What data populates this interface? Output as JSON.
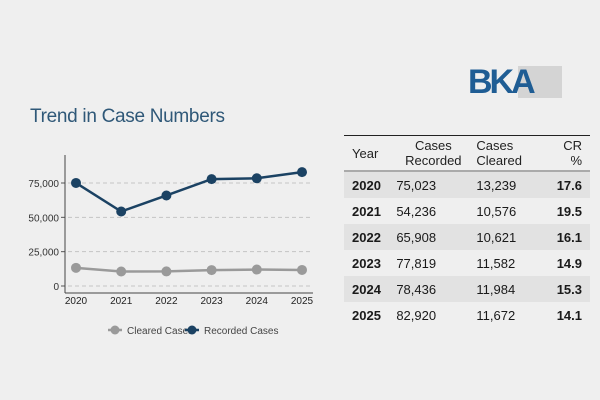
{
  "logo_text": "BKA",
  "colors": {
    "recorded": "#1b4263",
    "cleared": "#9a9a9a",
    "title": "#2f5878",
    "logo": "#1f5d94"
  },
  "chart_data": {
    "type": "line",
    "title": "Trend in Case Numbers",
    "x": [
      "2020",
      "2021",
      "2022",
      "2023",
      "2024",
      "2025"
    ],
    "yticks": [
      "0",
      "25,000",
      "50,000",
      "75,000"
    ],
    "ytick_values": [
      0,
      25000,
      50000,
      75000
    ],
    "ylim": [
      0,
      95000
    ],
    "grid": "horizontal dashed",
    "legend_position": "bottom",
    "series": [
      {
        "name": "Cleared Cases",
        "color": "#9a9a9a",
        "values": [
          13239,
          10576,
          10621,
          11582,
          11984,
          11672
        ]
      },
      {
        "name": "Recorded Cases",
        "color": "#1b4263",
        "values": [
          75023,
          54236,
          65908,
          77819,
          78436,
          82920
        ]
      }
    ]
  },
  "table": {
    "headers": [
      "Year",
      "Cases Recorded",
      "Cases Cleared",
      "CR %"
    ],
    "rows": [
      [
        "2020",
        "75,023",
        "13,239",
        "17.6"
      ],
      [
        "2021",
        "54,236",
        "10,576",
        "19.5"
      ],
      [
        "2022",
        "65,908",
        "10,621",
        "16.1"
      ],
      [
        "2023",
        "77,819",
        "11,582",
        "14.9"
      ],
      [
        "2024",
        "78,436",
        "11,984",
        "15.3"
      ],
      [
        "2025",
        "82,920",
        "11,672",
        "14.1"
      ]
    ]
  }
}
